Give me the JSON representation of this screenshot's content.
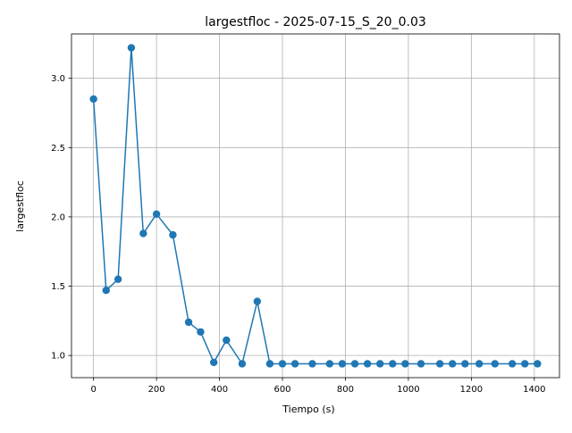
{
  "chart_data": {
    "type": "line",
    "title": "largestfloc - 2025-07-15_S_20_0.03",
    "xlabel": "Tiempo (s)",
    "ylabel": "largestfloc",
    "xlim": [
      -70,
      1480
    ],
    "ylim": [
      0.84,
      3.32
    ],
    "xticks": [
      0,
      200,
      400,
      600,
      800,
      1000,
      1200,
      1400
    ],
    "xtick_labels": [
      "0",
      "200",
      "400",
      "600",
      "800",
      "1000",
      "1200",
      "1400"
    ],
    "yticks": [
      1.0,
      1.5,
      2.0,
      2.5,
      3.0
    ],
    "ytick_labels": [
      "1.0",
      "1.5",
      "2.0",
      "2.5",
      "3.0"
    ],
    "grid": true,
    "series": [
      {
        "color": "#1f77b4",
        "marker": "circle",
        "x": [
          0,
          40,
          78,
          120,
          158,
          200,
          252,
          302,
          340,
          382,
          422,
          472,
          520,
          560,
          600,
          640,
          695,
          750,
          790,
          830,
          870,
          910,
          950,
          990,
          1040,
          1100,
          1140,
          1180,
          1225,
          1275,
          1330,
          1370,
          1410
        ],
        "y": [
          2.85,
          1.47,
          1.55,
          3.22,
          1.88,
          2.02,
          1.87,
          1.24,
          1.17,
          0.95,
          1.11,
          0.94,
          1.39,
          0.94,
          0.94,
          0.94,
          0.94,
          0.94,
          0.94,
          0.94,
          0.94,
          0.94,
          0.94,
          0.94,
          0.94,
          0.94,
          0.94,
          0.94,
          0.94,
          0.94,
          0.94,
          0.94,
          0.94
        ]
      }
    ]
  }
}
